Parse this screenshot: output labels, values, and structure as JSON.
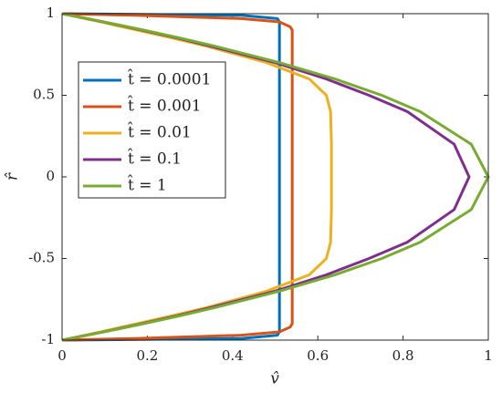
{
  "chart_data": {
    "type": "line",
    "x_label": "v̂",
    "y_label": "r̂",
    "xlim": [
      0,
      1
    ],
    "xticks": [
      0,
      0.2,
      0.4,
      0.6,
      0.8,
      1
    ],
    "ylim": [
      -1,
      1
    ],
    "yticks": [
      -1,
      -0.5,
      0,
      0.5,
      1
    ],
    "legend": "upper left",
    "y": [
      -1,
      -0.99,
      -0.97,
      -0.95,
      -0.92,
      -0.9,
      -0.85,
      -0.8,
      -0.7,
      -0.6,
      -0.5,
      -0.4,
      -0.2,
      0,
      0.2,
      0.4,
      0.5,
      0.6,
      0.7,
      0.8,
      0.85,
      0.9,
      0.92,
      0.95,
      0.97,
      0.99,
      1
    ],
    "series": [
      {
        "name": "t̂ = 0.0001",
        "color": "#0072BD",
        "values": [
          0,
          0.42,
          0.505,
          0.51,
          0.51,
          0.51,
          0.51,
          0.51,
          0.51,
          0.51,
          0.51,
          0.51,
          0.51,
          0.51,
          0.51,
          0.51,
          0.51,
          0.51,
          0.51,
          0.51,
          0.51,
          0.51,
          0.51,
          0.51,
          0.505,
          0.42,
          0
        ]
      },
      {
        "name": "t̂ = 0.001",
        "color": "#D95319",
        "values": [
          0,
          0.17,
          0.42,
          0.51,
          0.535,
          0.54,
          0.54,
          0.54,
          0.54,
          0.54,
          0.54,
          0.54,
          0.54,
          0.54,
          0.54,
          0.54,
          0.54,
          0.54,
          0.54,
          0.54,
          0.54,
          0.54,
          0.535,
          0.51,
          0.42,
          0.17,
          0
        ]
      },
      {
        "name": "t̂ = 0.01",
        "color": "#EDB120",
        "values": [
          0,
          0.018,
          0.055,
          0.09,
          0.14,
          0.175,
          0.26,
          0.34,
          0.48,
          0.58,
          0.62,
          0.63,
          0.632,
          0.632,
          0.632,
          0.63,
          0.62,
          0.58,
          0.48,
          0.34,
          0.26,
          0.175,
          0.14,
          0.09,
          0.055,
          0.018,
          0
        ]
      },
      {
        "name": "t̂ = 0.1",
        "color": "#7E2F8E",
        "values": [
          0,
          0.02,
          0.058,
          0.096,
          0.151,
          0.186,
          0.272,
          0.35,
          0.5,
          0.62,
          0.72,
          0.81,
          0.92,
          0.955,
          0.92,
          0.81,
          0.72,
          0.62,
          0.5,
          0.35,
          0.272,
          0.186,
          0.151,
          0.096,
          0.058,
          0.02,
          0
        ]
      },
      {
        "name": "t̂ = 1",
        "color": "#77AC30",
        "values": [
          0,
          0.02,
          0.059,
          0.0975,
          0.154,
          0.19,
          0.278,
          0.36,
          0.51,
          0.64,
          0.75,
          0.84,
          0.96,
          1,
          0.96,
          0.84,
          0.75,
          0.64,
          0.51,
          0.36,
          0.278,
          0.19,
          0.154,
          0.0975,
          0.059,
          0.02,
          0
        ]
      }
    ]
  }
}
